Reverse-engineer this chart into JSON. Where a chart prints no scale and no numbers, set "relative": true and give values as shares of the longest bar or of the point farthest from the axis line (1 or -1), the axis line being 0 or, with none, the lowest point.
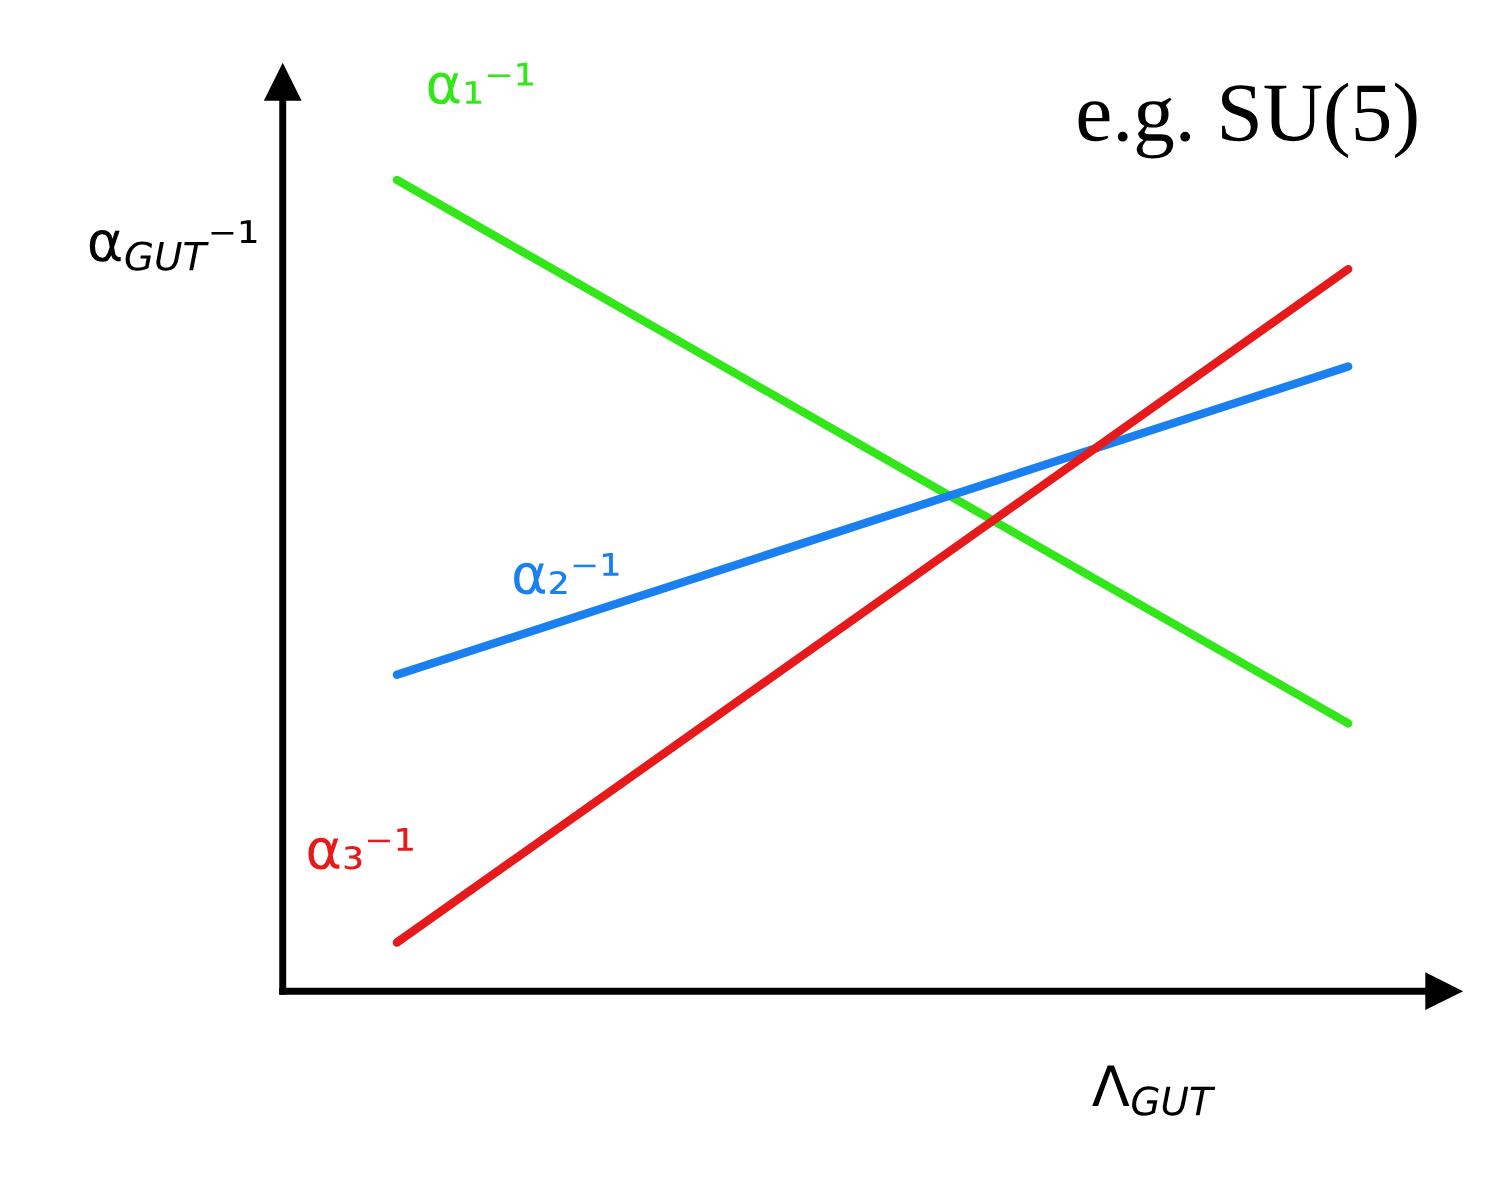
{
  "chart_data": {
    "type": "line",
    "relative": true,
    "categories": [
      null,
      null
    ],
    "xlabel": "Λ$_{GUT}$",
    "ylabel": "α$_{GUT}$⁻¹",
    "annotations": [
      "e.g. SU(5)"
    ],
    "legend": false,
    "grid": false,
    "marker": "none",
    "line_style": "solid",
    "series": [
      {
        "name": "α₁⁻¹",
        "color": "#33e61a",
        "values": [
          1,
          0.33
        ]
      },
      {
        "name": "α₂⁻¹",
        "color": "#1a80f0",
        "values": [
          0.39,
          0.77
        ]
      },
      {
        "name": "α₃⁻¹",
        "color": "#e61a1a",
        "values": [
          0.06,
          0.89
        ]
      }
    ]
  }
}
